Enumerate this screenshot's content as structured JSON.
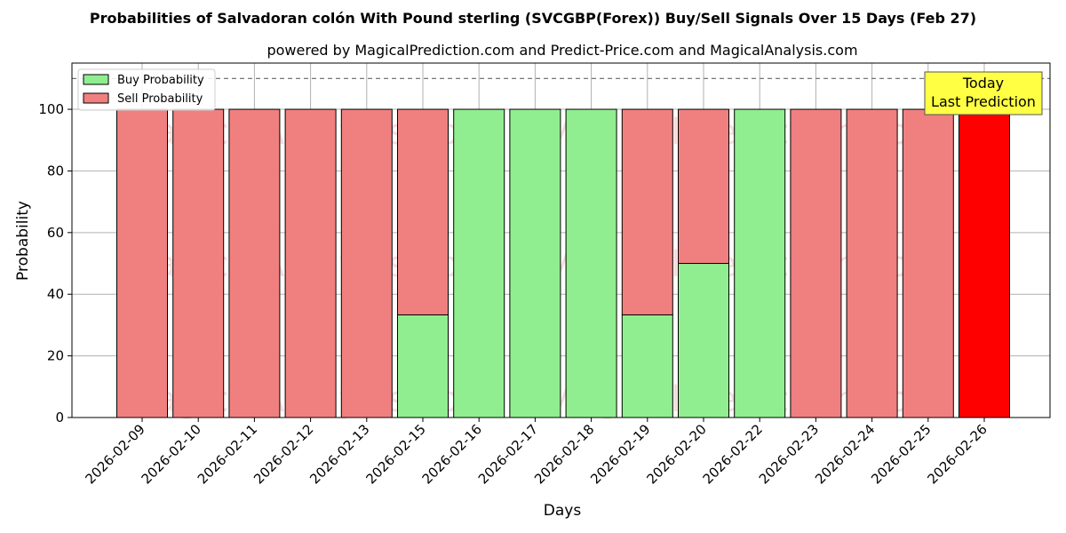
{
  "chart_data": {
    "type": "bar",
    "title": "Probabilities of Salvadoran colón With Pound sterling (SVCGBP(Forex)) Buy/Sell Signals Over 15 Days (Feb 27)",
    "subtitle": "powered by MagicalPrediction.com and Predict-Price.com and MagicalAnalysis.com",
    "xlabel": "Days",
    "ylabel": "Probability",
    "ylim": [
      0,
      115
    ],
    "yticks": [
      0,
      20,
      40,
      60,
      80,
      100
    ],
    "grid": true,
    "stacked": true,
    "reference_line": 110,
    "legend_position": "top-left",
    "categories": [
      "2026-02-09",
      "2026-02-10",
      "2026-02-11",
      "2026-02-12",
      "2026-02-13",
      "2026-02-15",
      "2026-02-16",
      "2026-02-17",
      "2026-02-18",
      "2026-02-19",
      "2026-02-20",
      "2026-02-22",
      "2026-02-23",
      "2026-02-24",
      "2026-02-25",
      "2026-02-26"
    ],
    "series": [
      {
        "name": "Buy Probability",
        "color": "#90ee90",
        "values": [
          0,
          0,
          0,
          0,
          0,
          33.3,
          100,
          100,
          100,
          33.3,
          50,
          100,
          0,
          0,
          0,
          0
        ]
      },
      {
        "name": "Sell Probability",
        "color": "#f08080",
        "values": [
          100,
          100,
          100,
          100,
          100,
          66.7,
          0,
          0,
          0,
          66.7,
          50,
          0,
          100,
          100,
          100,
          100
        ]
      }
    ],
    "highlight": {
      "category_index": 15,
      "color": "#ff0000"
    },
    "annotation": {
      "lines": [
        "Today",
        "Last Prediction"
      ],
      "color": "#ffff44"
    },
    "watermarks": [
      "MagicalAnalysis.com",
      "MagicalPrediction.com"
    ]
  }
}
